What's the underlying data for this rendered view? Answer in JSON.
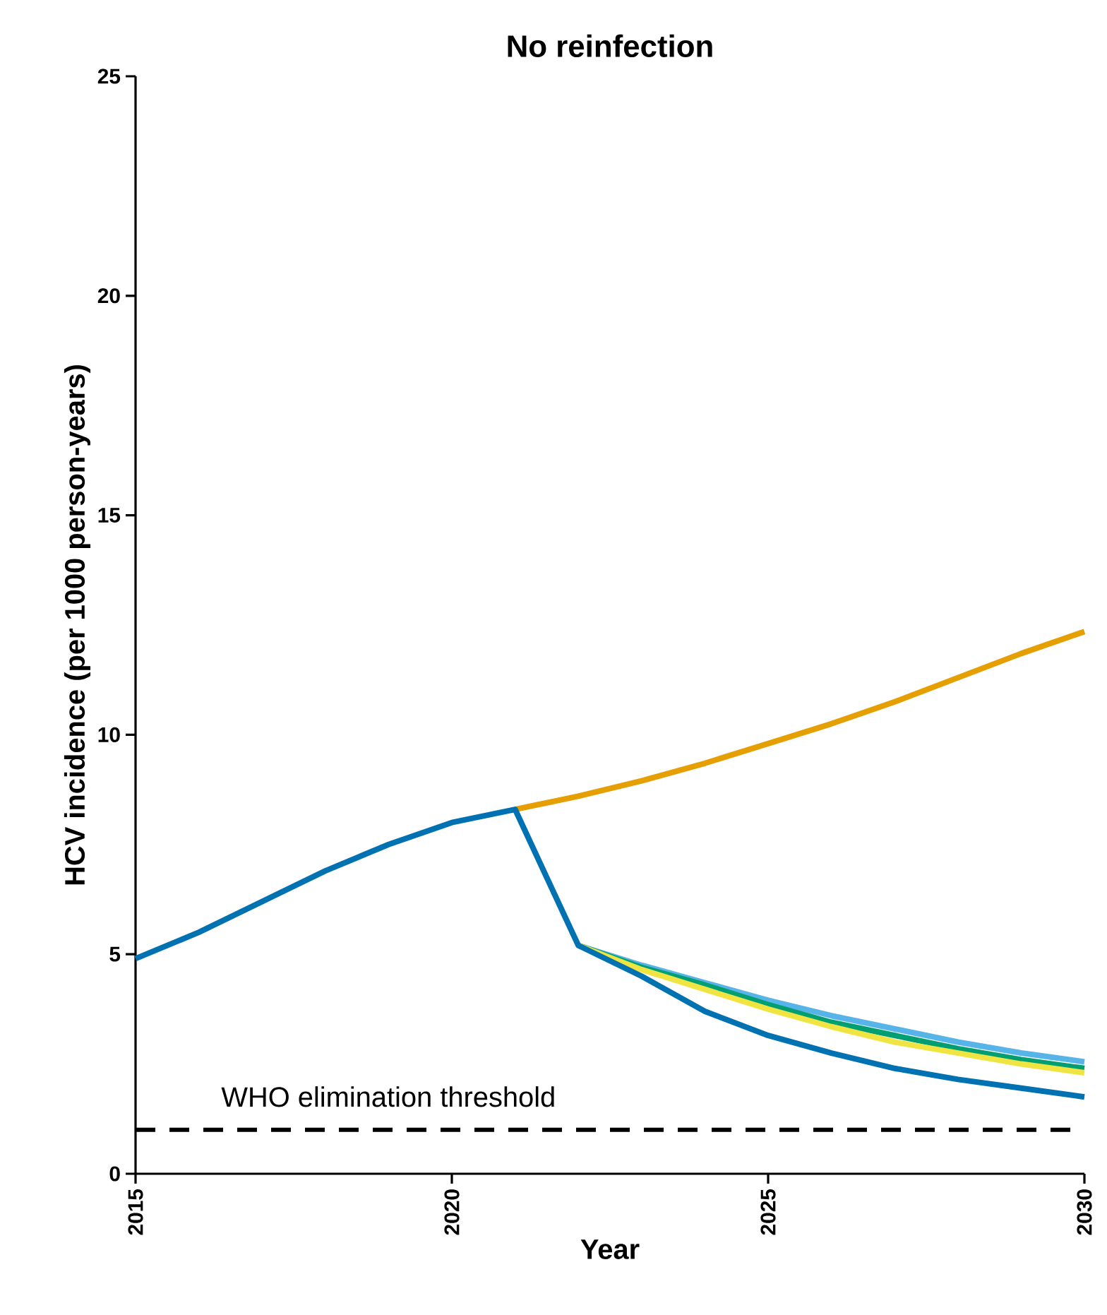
{
  "chart_data": {
    "type": "line",
    "title": "No reinfection",
    "xlabel": "Year",
    "ylabel": "HCV incidence (per 1000 person-years)",
    "xlim": [
      2015,
      2030
    ],
    "xticks": [
      2015,
      2020,
      2025,
      2030
    ],
    "ylim": [
      0,
      25
    ],
    "yticks": [
      0,
      5,
      10,
      15,
      20,
      25
    ],
    "grid": false,
    "ref_lines": [
      {
        "axis": "y",
        "value": 1,
        "label": "WHO elimination threshold",
        "color": "#000000",
        "line_style": "dashed"
      }
    ],
    "series": [
      {
        "color": "#56b4e9",
        "x": [
          2022,
          2023,
          2024,
          2025,
          2026,
          2027,
          2028,
          2029,
          2030
        ],
        "values": [
          5.2,
          4.75,
          4.35,
          3.95,
          3.6,
          3.3,
          3.0,
          2.75,
          2.55
        ]
      },
      {
        "color": "#009e73",
        "x": [
          2022,
          2023,
          2024,
          2025,
          2026,
          2027,
          2028,
          2029,
          2030
        ],
        "values": [
          5.2,
          4.7,
          4.3,
          3.85,
          3.45,
          3.15,
          2.85,
          2.6,
          2.4
        ]
      },
      {
        "color": "#f0e442",
        "x": [
          2022,
          2023,
          2024,
          2025,
          2026,
          2027,
          2028,
          2029,
          2030
        ],
        "values": [
          5.2,
          4.65,
          4.2,
          3.75,
          3.35,
          3.0,
          2.75,
          2.5,
          2.3
        ]
      },
      {
        "color": "#e69f00",
        "x": [
          2021,
          2022,
          2023,
          2024,
          2025,
          2026,
          2027,
          2028,
          2029,
          2030
        ],
        "values": [
          8.3,
          8.6,
          8.95,
          9.35,
          9.8,
          10.25,
          10.75,
          11.3,
          11.85,
          12.35
        ]
      },
      {
        "color": "#0072b2",
        "x": [
          2015,
          2016,
          2017,
          2018,
          2019,
          2020,
          2021,
          2022,
          2023,
          2024,
          2025,
          2026,
          2027,
          2028,
          2029,
          2030
        ],
        "values": [
          4.9,
          5.5,
          6.2,
          6.9,
          7.5,
          8.0,
          8.3,
          5.2,
          4.5,
          3.7,
          3.15,
          2.75,
          2.4,
          2.15,
          1.95,
          1.75
        ]
      }
    ]
  }
}
